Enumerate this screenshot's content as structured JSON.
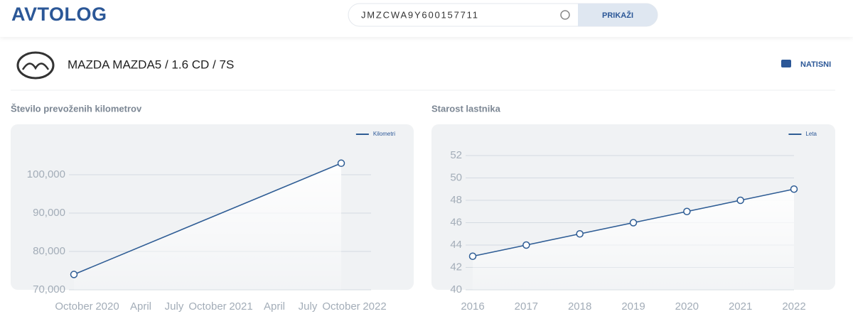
{
  "header": {
    "logo": "AVTOLOG",
    "search": "JMZCWA9Y600157711",
    "button": "PRIKAŽI"
  },
  "vehicle": {
    "title": "MAZDA MAZDA5 / 1.6 CD / 7S",
    "print": "NATISNI"
  },
  "chart_data": [
    {
      "type": "line",
      "title": "Število prevoženih kilometrov",
      "x": [
        "2020-10",
        "2022-10"
      ],
      "series": [
        {
          "name": "Kilometri",
          "color": "#2f5d95",
          "values": [
            74000,
            103000
          ]
        }
      ],
      "xlim": [
        "2020-10",
        "2023-01"
      ],
      "xticks": [
        {
          "value": "2020-10",
          "label": "October"
        },
        {
          "value": "2021-01",
          "label": "2020"
        },
        {
          "value": "2021-04",
          "label": "April"
        },
        {
          "value": "2021-07",
          "label": "July"
        },
        {
          "value": "2021-10",
          "label": "October"
        },
        {
          "value": "2022-01",
          "label": "2021"
        },
        {
          "value": "2022-04",
          "label": "April"
        },
        {
          "value": "2022-07",
          "label": "July"
        },
        {
          "value": "2022-10",
          "label": "October"
        },
        {
          "value": "2023-01",
          "label": "2022"
        }
      ],
      "ylim": [
        70000,
        110000
      ],
      "yticks": [
        {
          "value": 70000,
          "label": "70,000"
        },
        {
          "value": 80000,
          "label": "80,000"
        },
        {
          "value": 90000,
          "label": "90,000"
        },
        {
          "value": 100000,
          "label": "100,000"
        }
      ],
      "grid": true,
      "legend": "top-right"
    },
    {
      "type": "line",
      "title": "Starost lastnika",
      "x": [
        2016,
        2017,
        2018,
        2019,
        2020,
        2021,
        2022
      ],
      "series": [
        {
          "name": "Leta",
          "color": "#2f5d95",
          "values": [
            43,
            44,
            45,
            46,
            47,
            48,
            49
          ]
        }
      ],
      "xlim": [
        2016,
        2022
      ],
      "xticks": [
        2016,
        2017,
        2018,
        2019,
        2020,
        2021,
        2022
      ],
      "ylim": [
        40,
        52
      ],
      "yticks": [
        40,
        42,
        44,
        46,
        48,
        50,
        52
      ],
      "grid": true,
      "legend": "top-right"
    }
  ]
}
